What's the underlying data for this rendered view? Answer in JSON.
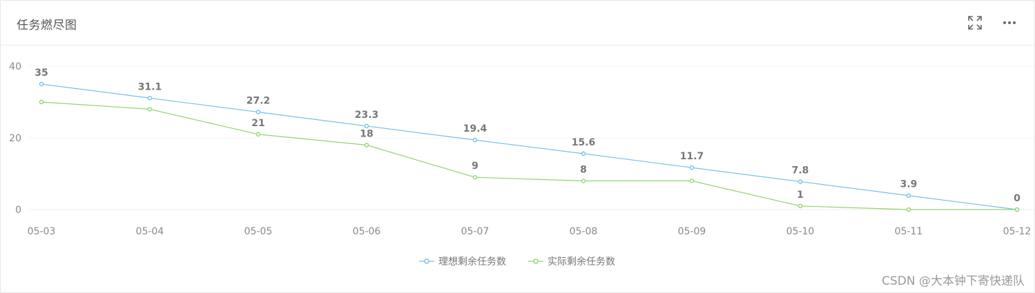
{
  "header": {
    "title": "任务燃尽图",
    "expand_icon": "expand-icon",
    "more_icon": "more-icon"
  },
  "chart_data": {
    "type": "line",
    "categories": [
      "05-03",
      "05-04",
      "05-05",
      "05-06",
      "05-07",
      "05-08",
      "05-09",
      "05-10",
      "05-11",
      "05-12"
    ],
    "ylim": [
      0,
      40
    ],
    "yticks": [
      0,
      20,
      40
    ],
    "grid": true,
    "legend_position": "bottom-center",
    "series": [
      {
        "name": "理想剩余任务数",
        "color": "#74bfe9",
        "values": [
          35,
          31.1,
          27.2,
          23.3,
          19.4,
          15.6,
          11.7,
          7.8,
          3.9,
          0
        ],
        "labels": [
          "35",
          "31.1",
          "27.2",
          "23.3",
          "19.4",
          "15.6",
          "11.7",
          "7.8",
          "3.9",
          "0"
        ]
      },
      {
        "name": "实际剩余任务数",
        "color": "#91d36f",
        "values": [
          30,
          28,
          21,
          18,
          9,
          8,
          8,
          1,
          0,
          0
        ],
        "labels": [
          "",
          "",
          "21",
          "18",
          "9",
          "8",
          "",
          "1",
          "",
          ""
        ]
      }
    ]
  },
  "watermark": "CSDN @大本钟下寄快递队"
}
